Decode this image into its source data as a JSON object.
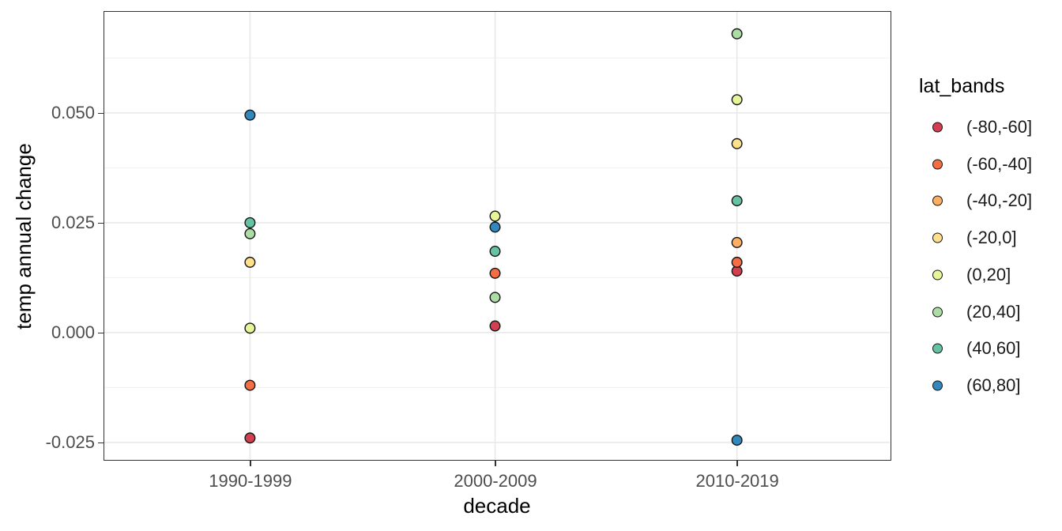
{
  "chart_data": {
    "type": "scatter",
    "title": "",
    "xlabel": "decade",
    "ylabel": "temp annual change",
    "legend_title": "lat_bands",
    "legend_position": "right",
    "grid": true,
    "categories": [
      "1990-1999",
      "2000-2009",
      "2010-2019"
    ],
    "y_ticks": [
      {
        "value": 0.05,
        "label": "0.050"
      },
      {
        "value": 0.025,
        "label": "0.025"
      },
      {
        "value": 0.0,
        "label": "0.000"
      },
      {
        "value": -0.025,
        "label": "-0.025"
      }
    ],
    "y_minor_ticks": [
      0.0625,
      0.0375,
      0.0125,
      -0.0125
    ],
    "ylim": [
      -0.0288,
      0.073
    ],
    "series": [
      {
        "name": "(-80,-60]",
        "color": "#d53e4f",
        "values": [
          -0.024,
          0.0015,
          0.014
        ]
      },
      {
        "name": "(-60,-40]",
        "color": "#f46d43",
        "values": [
          -0.012,
          0.0135,
          0.016
        ]
      },
      {
        "name": "(-40,-20]",
        "color": "#fdae61",
        "values": [
          null,
          null,
          0.0205
        ]
      },
      {
        "name": "(-20,0]",
        "color": "#fee08b",
        "values": [
          0.016,
          null,
          0.043
        ]
      },
      {
        "name": "(0,20]",
        "color": "#e6f598",
        "values": [
          0.001,
          0.0265,
          0.053
        ]
      },
      {
        "name": "(20,40]",
        "color": "#abdda4",
        "values": [
          0.0225,
          0.008,
          0.068
        ]
      },
      {
        "name": "(40,60]",
        "color": "#66c2a5",
        "values": [
          0.025,
          0.0185,
          0.03
        ]
      },
      {
        "name": "(60,80]",
        "color": "#3288bd",
        "values": [
          0.0495,
          0.024,
          -0.0245
        ]
      }
    ],
    "point_style": {
      "radius_px": 6.3,
      "stroke_color": "#141414",
      "stroke_width": 1.4
    },
    "colors": {
      "grid_major": "#e7e7e7",
      "grid_minor": "#f0f0f0",
      "panel_border": "#333333",
      "axis_text": "#4d4d4d",
      "axis_title": "#000000"
    }
  }
}
